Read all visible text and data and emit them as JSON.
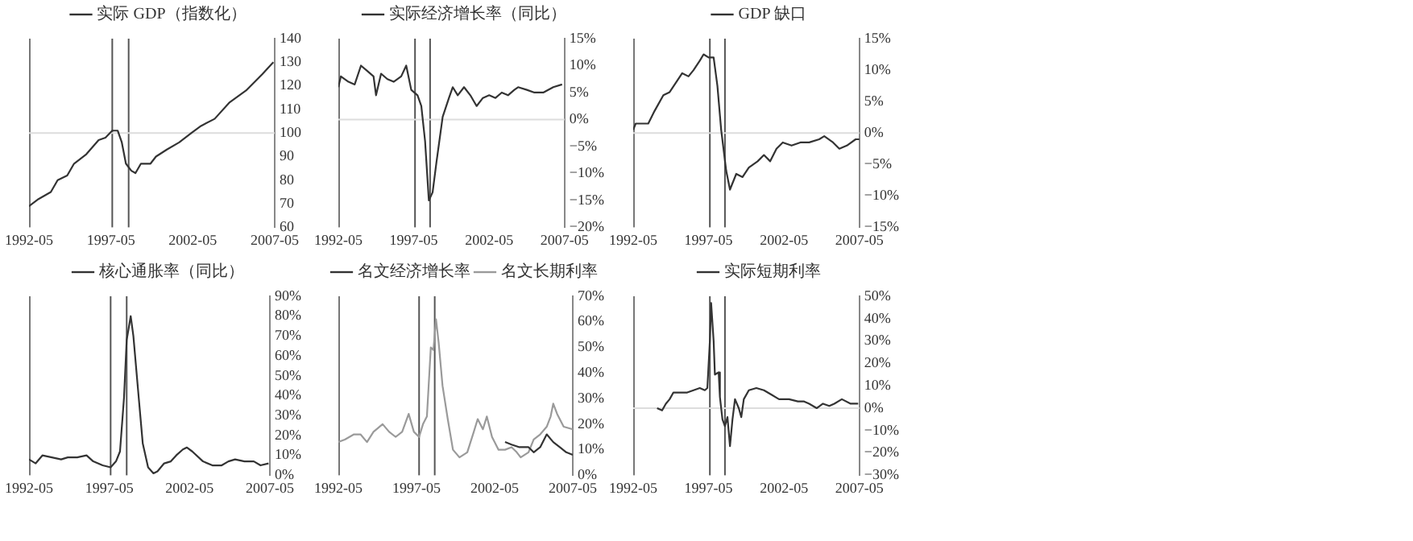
{
  "chart_data": [
    {
      "type": "line",
      "legend": "top",
      "grid": false,
      "xlim": [
        "1992-05",
        "2007-05"
      ],
      "xticks": [
        "1992-05",
        "1997-05",
        "2002-05",
        "2007-05"
      ],
      "ylim": [
        60,
        140
      ],
      "yticks": [
        60,
        70,
        80,
        90,
        100,
        110,
        120,
        130,
        140
      ],
      "ref_lines": [
        {
          "axis": "x",
          "value": "1997-06",
          "color": "#555555"
        },
        {
          "axis": "x",
          "value": "1998-06",
          "color": "#555555"
        },
        {
          "axis": "y",
          "value": 100,
          "color": "#dddddd"
        }
      ],
      "series": [
        {
          "name": "实际 GDP（指数化）",
          "color": "#333333",
          "x": [
            "1992-05",
            "1992-12",
            "1993-09",
            "1994-02",
            "1994-09",
            "1995-02",
            "1995-11",
            "1996-08",
            "1997-01",
            "1997-06",
            "1997-10",
            "1998-01",
            "1998-04",
            "1998-08",
            "1998-11",
            "1999-03",
            "1999-10",
            "2000-02",
            "2000-10",
            "2001-07",
            "2002-04",
            "2002-11",
            "2003-09",
            "2004-08",
            "2005-08",
            "2006-08",
            "2007-04"
          ],
          "values": [
            69,
            72,
            75,
            80,
            82,
            87,
            91,
            97,
            98,
            101,
            101,
            96,
            87,
            84,
            83,
            87,
            87,
            90,
            93,
            96,
            100,
            103,
            106,
            113,
            118,
            125,
            130
          ]
        }
      ]
    },
    {
      "type": "line",
      "legend": "top",
      "grid": false,
      "xlim": [
        "1992-05",
        "2007-05"
      ],
      "xticks": [
        "1992-05",
        "1997-05",
        "2002-05",
        "2007-05"
      ],
      "ylim": [
        -20,
        15
      ],
      "yticks": [
        {
          "value": -20,
          "label": "−20%"
        },
        {
          "value": -15,
          "label": "−15%"
        },
        {
          "value": -10,
          "label": "−10%"
        },
        {
          "value": -5,
          "label": "−5%"
        },
        {
          "value": 0,
          "label": "0%"
        },
        {
          "value": 5,
          "label": "5%"
        },
        {
          "value": 10,
          "label": "10%"
        },
        {
          "value": 15,
          "label": "15%"
        }
      ],
      "ref_lines": [
        {
          "axis": "x",
          "value": "1997-06",
          "color": "#555555"
        },
        {
          "axis": "x",
          "value": "1998-06",
          "color": "#555555"
        },
        {
          "axis": "y",
          "value": 0,
          "color": "#dddddd"
        }
      ],
      "series": [
        {
          "name": "实际经济增长率（同比）",
          "color": "#333333",
          "x": [
            "1992-05",
            "1992-07",
            "1993-01",
            "1993-06",
            "1993-11",
            "1994-04",
            "1994-09",
            "1994-11",
            "1995-03",
            "1995-08",
            "1996-01",
            "1996-07",
            "1996-11",
            "1997-03",
            "1997-08",
            "1997-11",
            "1998-02",
            "1998-05",
            "1998-08",
            "1998-11",
            "1999-04",
            "1999-09",
            "1999-12",
            "2000-04",
            "2000-09",
            "2001-02",
            "2001-07",
            "2001-12",
            "2002-05",
            "2002-10",
            "2003-03",
            "2003-08",
            "2004-01",
            "2004-04",
            "2004-11",
            "2005-05",
            "2005-12",
            "2006-08",
            "2007-03"
          ],
          "values": [
            6.0,
            8.0,
            7.0,
            6.5,
            10.0,
            9.0,
            8.0,
            4.5,
            8.5,
            7.5,
            7.0,
            8.0,
            10.0,
            5.5,
            4.5,
            2.5,
            -4.0,
            -15.0,
            -13.5,
            -8.0,
            0.5,
            4.0,
            6.0,
            4.5,
            6.0,
            4.5,
            2.5,
            4.0,
            4.5,
            4.0,
            5.0,
            4.5,
            5.5,
            6.0,
            5.5,
            5.0,
            5.0,
            6.0,
            6.5
          ]
        }
      ]
    },
    {
      "type": "line",
      "legend": "top",
      "grid": false,
      "xlim": [
        "1992-05",
        "2007-05"
      ],
      "xticks": [
        "1992-05",
        "1997-05",
        "2002-05",
        "2007-05"
      ],
      "ylim": [
        -15,
        15
      ],
      "yticks": [
        {
          "value": -15,
          "label": "−15%"
        },
        {
          "value": -10,
          "label": "−10%"
        },
        {
          "value": -5,
          "label": "−5%"
        },
        {
          "value": 0,
          "label": "0%"
        },
        {
          "value": 5,
          "label": "5%"
        },
        {
          "value": 10,
          "label": "10%"
        },
        {
          "value": 15,
          "label": "15%"
        }
      ],
      "ref_lines": [
        {
          "axis": "x",
          "value": "1997-06",
          "color": "#555555"
        },
        {
          "axis": "x",
          "value": "1998-06",
          "color": "#555555"
        },
        {
          "axis": "y",
          "value": 0,
          "color": "#dddddd"
        }
      ],
      "series": [
        {
          "name": "GDP 缺口",
          "color": "#333333",
          "x": [
            "1992-05",
            "1992-07",
            "1992-12",
            "1993-05",
            "1993-10",
            "1994-05",
            "1994-10",
            "1995-03",
            "1995-08",
            "1996-01",
            "1996-05",
            "1996-10",
            "1997-01",
            "1997-05",
            "1997-09",
            "1997-12",
            "1998-03",
            "1998-07",
            "1998-10",
            "1999-03",
            "1999-08",
            "2000-01",
            "2000-08",
            "2001-01",
            "2001-06",
            "2001-11",
            "2002-04",
            "2002-11",
            "2003-06",
            "2004-01",
            "2004-09",
            "2005-01",
            "2005-08",
            "2006-01",
            "2006-07",
            "2007-02",
            "2007-05"
          ],
          "values": [
            0.5,
            1.5,
            1.5,
            1.5,
            3.5,
            6.0,
            6.5,
            8.0,
            9.5,
            9.0,
            10.0,
            11.5,
            12.5,
            12.0,
            12.0,
            7.5,
            0.5,
            -6.0,
            -9.0,
            -6.5,
            -7.0,
            -5.5,
            -4.5,
            -3.5,
            -4.5,
            -2.5,
            -1.5,
            -2.0,
            -1.5,
            -1.5,
            -1.0,
            -0.5,
            -1.5,
            -2.5,
            -2.0,
            -1.0,
            -1.0
          ]
        }
      ]
    },
    {
      "type": "line",
      "legend": "top",
      "grid": false,
      "xlim": [
        "1992-05",
        "2007-05"
      ],
      "xticks": [
        "1992-05",
        "1997-05",
        "2002-05",
        "2007-05"
      ],
      "ylim": [
        0,
        90
      ],
      "yticks": [
        {
          "value": 0,
          "label": "0%"
        },
        {
          "value": 10,
          "label": "10%"
        },
        {
          "value": 20,
          "label": "20%"
        },
        {
          "value": 30,
          "label": "30%"
        },
        {
          "value": 40,
          "label": "40%"
        },
        {
          "value": 50,
          "label": "50%"
        },
        {
          "value": 60,
          "label": "60%"
        },
        {
          "value": 70,
          "label": "70%"
        },
        {
          "value": 80,
          "label": "80%"
        },
        {
          "value": 90,
          "label": "90%"
        }
      ],
      "ref_lines": [
        {
          "axis": "x",
          "value": "1997-06",
          "color": "#555555"
        },
        {
          "axis": "x",
          "value": "1998-06",
          "color": "#555555"
        }
      ],
      "series": [
        {
          "name": "核心通胀率（同比）",
          "color": "#333333",
          "x": [
            "1992-05",
            "1992-10",
            "1993-03",
            "1993-10",
            "1994-05",
            "1994-10",
            "1995-05",
            "1995-12",
            "1996-05",
            "1996-12",
            "1997-06",
            "1997-10",
            "1998-01",
            "1998-04",
            "1998-06",
            "1998-09",
            "1998-11",
            "1999-03",
            "1999-06",
            "1999-10",
            "2000-02",
            "2000-05",
            "2000-10",
            "2001-03",
            "2001-07",
            "2001-12",
            "2002-03",
            "2002-07",
            "2003-03",
            "2003-10",
            "2004-05",
            "2004-10",
            "2005-03",
            "2005-10",
            "2006-05",
            "2006-10",
            "2007-04"
          ],
          "values": [
            8,
            6,
            10,
            9,
            8,
            9,
            9,
            10,
            7,
            5,
            4,
            7,
            12,
            39,
            68,
            80,
            70,
            39,
            16,
            4,
            1,
            2,
            6,
            7,
            10,
            13,
            14,
            12,
            7,
            5,
            5,
            7,
            8,
            7,
            7,
            5,
            6
          ]
        }
      ]
    },
    {
      "type": "line",
      "legend": "top",
      "grid": false,
      "xlim": [
        "1992-05",
        "2007-05"
      ],
      "xticks": [
        "1992-05",
        "1997-05",
        "2002-05",
        "2007-05"
      ],
      "ylim": [
        0,
        70
      ],
      "yticks": [
        {
          "value": 0,
          "label": "0%"
        },
        {
          "value": 10,
          "label": "10%"
        },
        {
          "value": 20,
          "label": "20%"
        },
        {
          "value": 30,
          "label": "30%"
        },
        {
          "value": 40,
          "label": "40%"
        },
        {
          "value": 50,
          "label": "50%"
        },
        {
          "value": 60,
          "label": "60%"
        },
        {
          "value": 70,
          "label": "70%"
        }
      ],
      "ref_lines": [
        {
          "axis": "x",
          "value": "1997-07",
          "color": "#555555"
        },
        {
          "axis": "x",
          "value": "1998-07",
          "color": "#555555"
        }
      ],
      "series": [
        {
          "name": "名文经济增长率",
          "color": "#333333",
          "x": [
            "2003-01",
            "2003-06",
            "2003-12",
            "2004-07",
            "2004-11",
            "2005-04",
            "2005-09",
            "2006-02",
            "2006-07",
            "2006-12",
            "2007-05"
          ],
          "values": [
            13,
            12,
            11,
            11,
            9,
            11,
            16,
            13,
            11,
            9,
            8
          ]
        },
        {
          "name": "名文长期利率",
          "color": "#9a9a9a",
          "x": [
            "1992-05",
            "1992-10",
            "1993-05",
            "1993-10",
            "1994-03",
            "1994-08",
            "1995-03",
            "1995-08",
            "1996-01",
            "1996-06",
            "1996-11",
            "1997-03",
            "1997-07",
            "1997-10",
            "1998-01",
            "1998-04",
            "1998-06",
            "1998-08",
            "1998-10",
            "1999-01",
            "1999-05",
            "1999-09",
            "2000-02",
            "2000-08",
            "2001-01",
            "2001-04",
            "2001-08",
            "2001-11",
            "2002-03",
            "2002-08",
            "2003-01",
            "2003-06",
            "2003-10",
            "2004-01",
            "2004-07",
            "2004-11",
            "2005-04",
            "2005-09",
            "2005-12",
            "2006-02",
            "2006-05",
            "2006-10",
            "2007-05"
          ],
          "values": [
            13,
            14,
            16,
            16,
            13,
            17,
            20,
            17,
            15,
            17,
            24,
            17,
            15,
            20,
            23,
            50,
            49,
            61,
            52,
            35,
            22,
            10,
            7,
            9,
            17,
            22,
            18,
            23,
            15,
            10,
            10,
            11,
            9,
            7,
            9,
            14,
            16,
            19,
            23,
            28,
            24,
            19,
            18
          ]
        }
      ]
    },
    {
      "type": "line",
      "legend": "top",
      "grid": false,
      "xlim": [
        "1992-05",
        "2007-05"
      ],
      "xticks": [
        "1992-05",
        "1997-05",
        "2002-05",
        "2007-05"
      ],
      "ylim": [
        -30,
        50
      ],
      "yticks": [
        {
          "value": -30,
          "label": "−30%"
        },
        {
          "value": -20,
          "label": "−20%"
        },
        {
          "value": -10,
          "label": "−10%"
        },
        {
          "value": 0,
          "label": "0%"
        },
        {
          "value": 10,
          "label": "10%"
        },
        {
          "value": 20,
          "label": "20%"
        },
        {
          "value": 30,
          "label": "30%"
        },
        {
          "value": 40,
          "label": "40%"
        },
        {
          "value": 50,
          "label": "50%"
        }
      ],
      "ref_lines": [
        {
          "axis": "x",
          "value": "1997-06",
          "color": "#555555"
        },
        {
          "axis": "x",
          "value": "1998-06",
          "color": "#555555"
        },
        {
          "axis": "y",
          "value": 0,
          "color": "#dddddd"
        }
      ],
      "series": [
        {
          "name": "实际短期利率",
          "color": "#333333",
          "x": [
            "1993-12",
            "1994-04",
            "1994-07",
            "1994-10",
            "1995-01",
            "1995-07",
            "1995-12",
            "1996-05",
            "1996-10",
            "1997-02",
            "1997-04",
            "1997-06",
            "1997-07",
            "1997-09",
            "1997-10",
            "1998-01",
            "1998-02",
            "1998-04",
            "1998-06",
            "1998-08",
            "1998-10",
            "1998-12",
            "1999-02",
            "1999-05",
            "1999-07",
            "1999-09",
            "2000-01",
            "2000-07",
            "2001-01",
            "2001-07",
            "2002-01",
            "2002-09",
            "2003-04",
            "2003-09",
            "2004-01",
            "2004-07",
            "2004-12",
            "2005-05",
            "2005-09",
            "2006-03",
            "2006-10",
            "2007-04"
          ],
          "values": [
            0,
            -1,
            2,
            4,
            7,
            7,
            7,
            8,
            9,
            8,
            9,
            30,
            47,
            30,
            15,
            16,
            5,
            -5,
            -8,
            -4,
            -17,
            -5,
            4,
            0,
            -4,
            4,
            8,
            9,
            8,
            6,
            4,
            4,
            3,
            3,
            2,
            0,
            2,
            1,
            2,
            4,
            2,
            2
          ]
        }
      ]
    }
  ]
}
